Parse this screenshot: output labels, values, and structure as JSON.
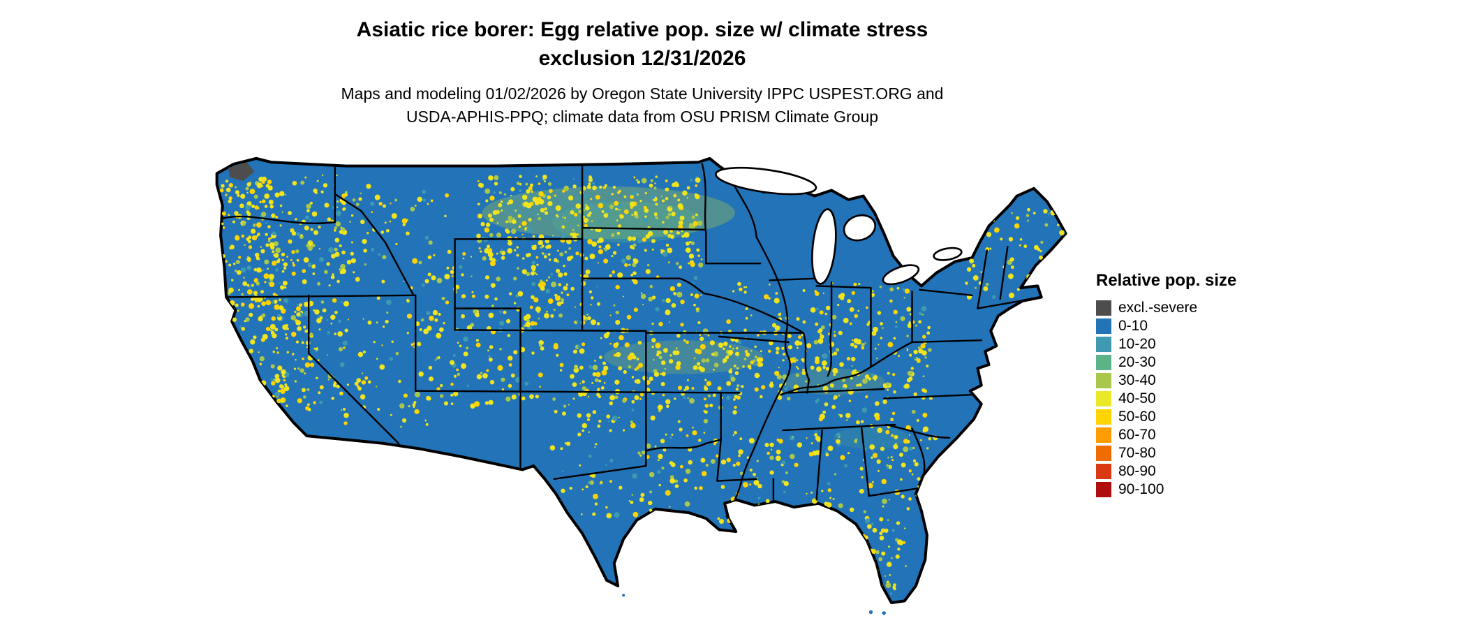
{
  "title": {
    "line1": "Asiatic rice borer: Egg relative pop. size w/ climate stress",
    "line2": "exclusion 12/31/2026"
  },
  "subtitle": {
    "line1": "Maps and modeling 01/02/2026 by Oregon State University IPPC USPEST.ORG and",
    "line2": "USDA-APHIS-PPQ; climate data from OSU PRISM Climate Group"
  },
  "legend": {
    "title": "Relative pop. size",
    "items": [
      {
        "label": "excl.-severe",
        "color": "#4d4d4d"
      },
      {
        "label": "0-10",
        "color": "#2273b8"
      },
      {
        "label": "10-20",
        "color": "#3d9ab1"
      },
      {
        "label": "20-30",
        "color": "#5cb387"
      },
      {
        "label": "30-40",
        "color": "#a9c84b"
      },
      {
        "label": "40-50",
        "color": "#eae929"
      },
      {
        "label": "50-60",
        "color": "#ffd400"
      },
      {
        "label": "60-70",
        "color": "#ff9d00"
      },
      {
        "label": "70-80",
        "color": "#ef6c00"
      },
      {
        "label": "80-90",
        "color": "#d93a12"
      },
      {
        "label": "90-100",
        "color": "#b00d0d"
      }
    ]
  },
  "map": {
    "base_color": "#2273b8",
    "border_color": "#000000",
    "water_color": "#ffffff",
    "excluded_color": "#4d4d4d",
    "speckle_colors": [
      "#f0e41f",
      "#ffd400",
      "#a9c84b",
      "#3d9ab1"
    ]
  }
}
